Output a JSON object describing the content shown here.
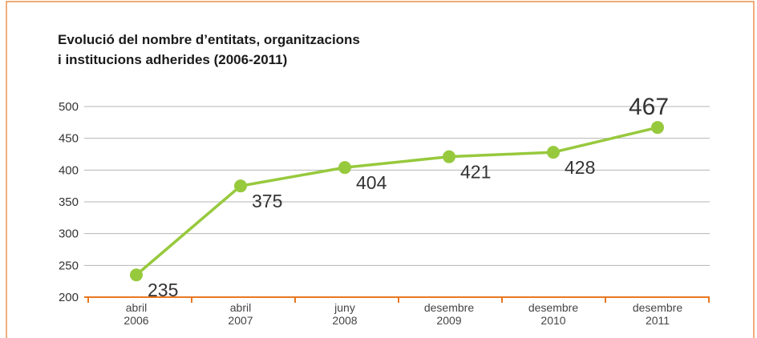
{
  "chart_data": {
    "type": "line",
    "title": [
      "Evolució del nombre d’entitats, organitzacions",
      "i institucions adherides (2006-2011)"
    ],
    "categories": [
      "abril 2006",
      "abril 2007",
      "juny 2008",
      "desembre 2009",
      "desembre 2010",
      "desembre 2011"
    ],
    "values": [
      235,
      375,
      404,
      421,
      428,
      467
    ],
    "color": "#97c93d",
    "ylim": [
      200,
      500
    ],
    "yticks": [
      200,
      250,
      300,
      350,
      400,
      450,
      500
    ],
    "grid": true
  }
}
